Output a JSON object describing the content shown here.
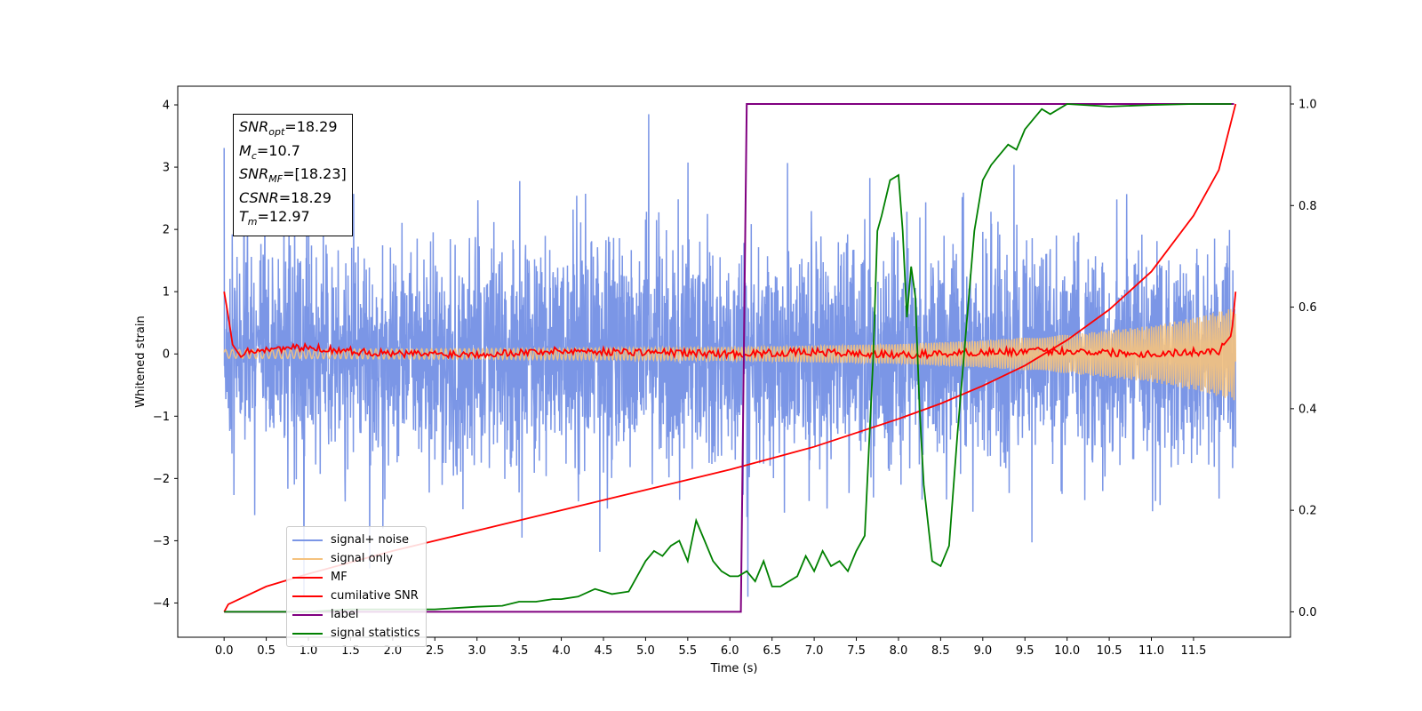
{
  "chart_data": {
    "type": "line",
    "xlabel": "Time (s)",
    "ylabel": "Whitened strain",
    "xlim": [
      -0.55,
      12.65
    ],
    "ylim": [
      -4.55,
      4.3
    ],
    "y2lim": [
      -0.05,
      1.035
    ],
    "x_ticks": [
      "0.0",
      "0.5",
      "1.0",
      "1.5",
      "2.0",
      "2.5",
      "3.0",
      "3.5",
      "4.0",
      "4.5",
      "5.0",
      "5.5",
      "6.0",
      "6.5",
      "7.0",
      "7.5",
      "8.0",
      "8.5",
      "9.0",
      "9.5",
      "10.0",
      "10.5",
      "11.0",
      "11.5"
    ],
    "y_ticks": [
      "4",
      "3",
      "2",
      "1",
      "0",
      "−1",
      "−2",
      "−3",
      "−4"
    ],
    "y2_ticks": [
      "1.0",
      "0.8",
      "0.6",
      "0.4",
      "0.2",
      "0.0"
    ],
    "grid": false,
    "legend_position": "lower-left",
    "annotation": {
      "snr_opt": "=18.29",
      "mc": "=10.7",
      "snr_mf": "=[18.23]",
      "csnr": "=18.29",
      "tm": "=12.97"
    },
    "series": [
      {
        "name": "signal+ noise",
        "color": "#7b96e6",
        "axis": "left",
        "kind": "noise",
        "t_start": 0.0,
        "t_end": 12.0,
        "sigma": 0.85
      },
      {
        "name": "signal only",
        "color": "#f5c27d",
        "axis": "left",
        "kind": "chirp",
        "t": [
          0,
          2,
          4,
          6,
          8,
          9,
          10,
          11,
          11.5,
          12.0
        ],
        "envelope": [
          0.07,
          0.08,
          0.09,
          0.11,
          0.16,
          0.22,
          0.31,
          0.45,
          0.58,
          0.75
        ]
      },
      {
        "name": "MF",
        "color": "#ff0000",
        "axis": "left",
        "kind": "mf",
        "t": [
          0.0,
          0.05,
          0.1,
          0.15,
          0.2,
          0.3,
          0.5,
          1.0,
          2.0,
          3.0,
          4.0,
          5.0,
          6.0,
          7.0,
          8.0,
          9.0,
          10.0,
          11.0,
          11.8,
          11.95,
          12.0
        ],
        "y": [
          1.0,
          0.6,
          0.15,
          0.05,
          -0.05,
          0.05,
          0.08,
          0.1,
          0.0,
          0.0,
          0.05,
          0.03,
          0.0,
          0.03,
          -0.02,
          0.03,
          0.05,
          0.0,
          0.05,
          0.3,
          1.0
        ]
      },
      {
        "name": "cumilative SNR",
        "color": "#ff0000",
        "axis": "right",
        "x": [
          0.0,
          0.05,
          0.5,
          1.0,
          2.0,
          3.0,
          4.0,
          5.0,
          6.0,
          7.0,
          8.0,
          8.5,
          9.0,
          9.5,
          10.0,
          10.5,
          11.0,
          11.5,
          11.8,
          12.0
        ],
        "y": [
          0.0,
          0.015,
          0.05,
          0.075,
          0.12,
          0.16,
          0.2,
          0.24,
          0.28,
          0.325,
          0.38,
          0.41,
          0.445,
          0.485,
          0.535,
          0.595,
          0.67,
          0.78,
          0.87,
          1.0
        ]
      },
      {
        "name": "label",
        "color": "#800080",
        "axis": "right",
        "x": [
          0.0,
          6.13,
          6.2,
          11.0,
          11.98
        ],
        "y": [
          0.0,
          0.0,
          1.0,
          1.0,
          1.0
        ]
      },
      {
        "name": "signal statistics",
        "color": "#008000",
        "axis": "right",
        "x": [
          0.0,
          0.5,
          1.0,
          1.5,
          2.0,
          2.5,
          3.0,
          3.3,
          3.5,
          3.7,
          3.9,
          4.0,
          4.2,
          4.4,
          4.6,
          4.8,
          5.0,
          5.1,
          5.2,
          5.3,
          5.4,
          5.5,
          5.6,
          5.7,
          5.8,
          5.9,
          6.0,
          6.1,
          6.2,
          6.3,
          6.4,
          6.5,
          6.6,
          6.8,
          6.9,
          7.0,
          7.1,
          7.2,
          7.3,
          7.4,
          7.5,
          7.6,
          7.7,
          7.75,
          7.8,
          7.9,
          8.0,
          8.05,
          8.1,
          8.15,
          8.2,
          8.25,
          8.3,
          8.4,
          8.5,
          8.6,
          8.7,
          8.8,
          8.9,
          9.0,
          9.1,
          9.2,
          9.3,
          9.4,
          9.5,
          9.6,
          9.7,
          9.8,
          9.9,
          10.0,
          10.5,
          11.0,
          11.5,
          11.95
        ],
        "y": [
          0.0,
          0.0,
          0.0,
          0.005,
          0.005,
          0.005,
          0.01,
          0.012,
          0.02,
          0.02,
          0.025,
          0.025,
          0.03,
          0.045,
          0.035,
          0.04,
          0.1,
          0.12,
          0.11,
          0.13,
          0.14,
          0.1,
          0.18,
          0.14,
          0.1,
          0.08,
          0.07,
          0.07,
          0.08,
          0.06,
          0.1,
          0.05,
          0.05,
          0.07,
          0.11,
          0.08,
          0.12,
          0.09,
          0.1,
          0.08,
          0.12,
          0.15,
          0.5,
          0.75,
          0.78,
          0.85,
          0.86,
          0.75,
          0.58,
          0.68,
          0.62,
          0.4,
          0.25,
          0.1,
          0.09,
          0.13,
          0.35,
          0.55,
          0.75,
          0.85,
          0.88,
          0.9,
          0.92,
          0.91,
          0.95,
          0.97,
          0.99,
          0.98,
          0.99,
          1.0,
          0.995,
          0.998,
          1.0,
          1.0
        ]
      }
    ]
  }
}
